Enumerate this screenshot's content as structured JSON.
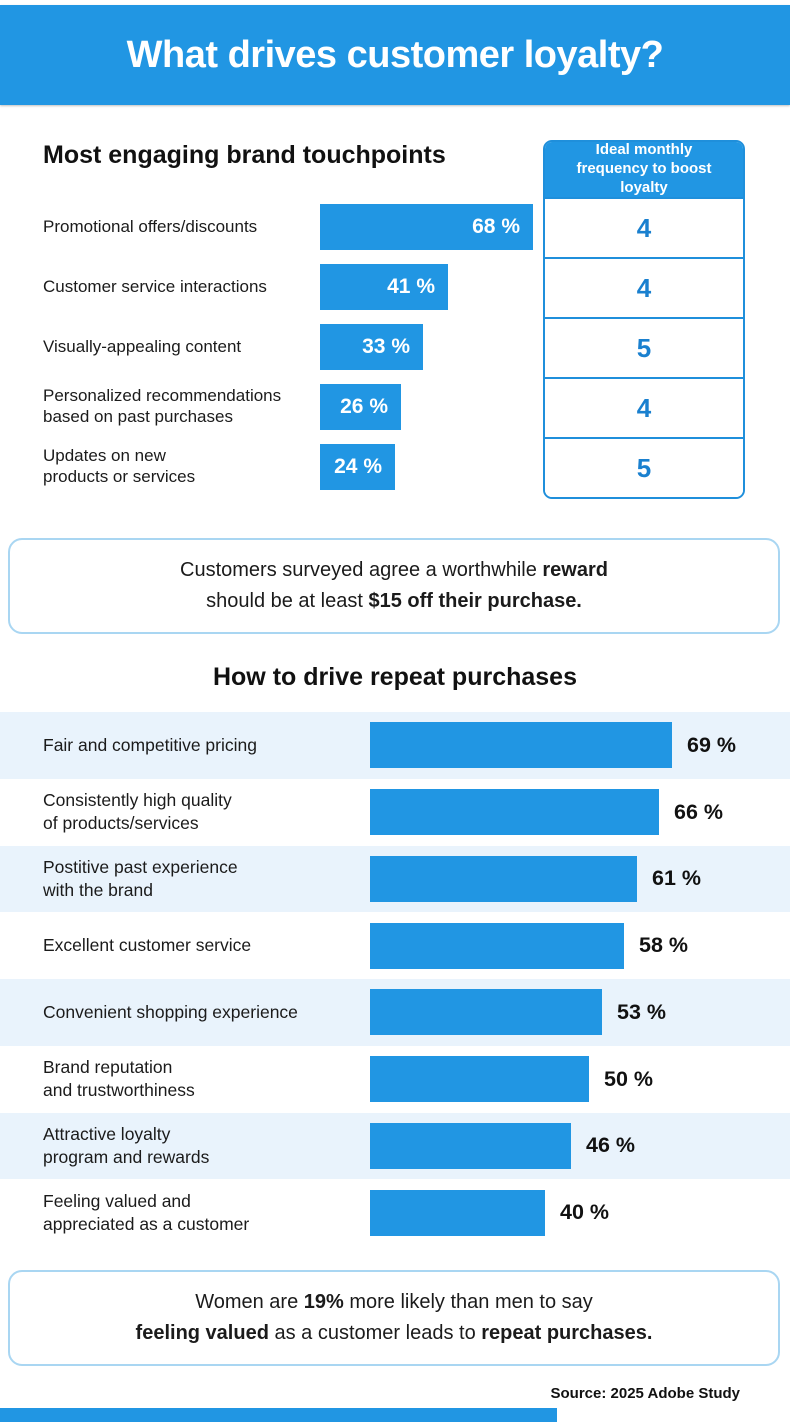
{
  "header": {
    "title": "What drives customer loyalty?"
  },
  "theme": {
    "accent_blue": "#2196e3",
    "table_border_blue": "#1f8fdb",
    "table_number_blue": "#1a80cf",
    "tinted_row_bg": "#e9f3fc",
    "callout_border": "#a9d6f2",
    "text_dark": "#1b1b1b"
  },
  "sections": {
    "touchpoints": {
      "heading": "Most engaging brand touchpoints",
      "table": {
        "header": "Ideal monthly frequency to boost loyalty"
      }
    },
    "repeat": {
      "heading": "How to drive repeat purchases"
    }
  },
  "callouts": {
    "reward": {
      "lines": [
        [
          {
            "t": "Customers surveyed agree a worthwhile ",
            "b": false
          },
          {
            "t": "reward",
            "b": true
          }
        ],
        [
          {
            "t": "should be at least ",
            "b": false
          },
          {
            "t": "$15 off their purchase.",
            "b": true
          }
        ]
      ]
    },
    "women": {
      "lines": [
        [
          {
            "t": "Women are ",
            "b": false
          },
          {
            "t": "19%",
            "b": true
          },
          {
            "t": " more likely than men to say",
            "b": false
          }
        ],
        [
          {
            "t": "feeling valued",
            "b": true
          },
          {
            "t": " as a customer leads to ",
            "b": false
          },
          {
            "t": "repeat purchases.",
            "b": true
          }
        ]
      ]
    }
  },
  "footer": {
    "source": "Source: 2025 Adobe Study"
  },
  "chart_data": [
    {
      "type": "bar",
      "title": "Most engaging brand touchpoints",
      "orientation": "horizontal",
      "categories": [
        "Promotional offers/discounts",
        "Customer service interactions",
        "Visually-appealing content",
        "Personalized recommendations\nbased on past purchases",
        "Updates on new\nproducts or services"
      ],
      "values": [
        68,
        41,
        33,
        26,
        24
      ],
      "value_suffix": " %",
      "value_label_position": "inside-right",
      "xlim": [
        0,
        68
      ],
      "bar_color": "#2196e3",
      "extra_column": {
        "header": "Ideal monthly frequency to boost loyalty",
        "values": [
          4,
          4,
          5,
          4,
          5
        ]
      }
    },
    {
      "type": "bar",
      "title": "How to drive repeat purchases",
      "orientation": "horizontal",
      "categories": [
        "Fair and competitive pricing",
        "Consistently high quality\nof products/services",
        "Postitive past experience\nwith the brand",
        "Excellent customer service",
        "Convenient shopping experience",
        "Brand reputation\nand trustworthiness",
        "Attractive loyalty\nprogram and rewards",
        "Feeling valued and\nappreciated as a customer"
      ],
      "values": [
        69,
        66,
        61,
        58,
        53,
        50,
        46,
        40
      ],
      "value_suffix": " %",
      "value_label_position": "outside-right",
      "xlim": [
        0,
        69
      ],
      "bar_color": "#2196e3",
      "row_striping": "alternate-light-blue"
    }
  ]
}
